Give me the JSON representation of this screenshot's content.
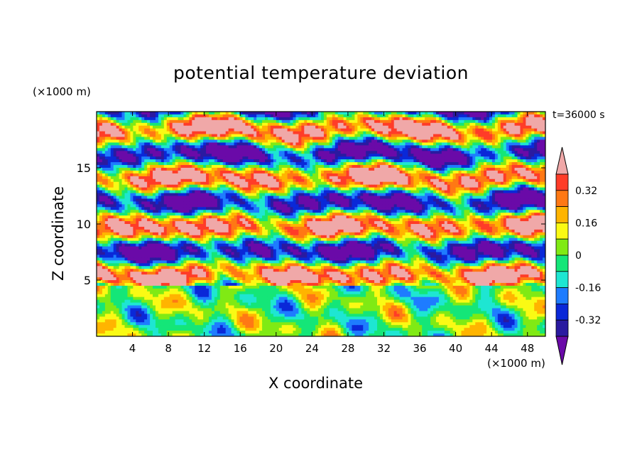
{
  "title": "potential temperature deviation",
  "time_label": "t=36000 s",
  "chart_data": {
    "type": "heatmap",
    "title": "potential temperature deviation",
    "xlabel": "X coordinate",
    "ylabel": "Z coordinate",
    "x_unit": "(×1000 m)",
    "z_unit": "(×1000 m)",
    "xlim": [
      0,
      50
    ],
    "ylim": [
      0,
      20
    ],
    "x_ticks": [
      4,
      8,
      12,
      16,
      20,
      24,
      28,
      32,
      36,
      40,
      44,
      48
    ],
    "y_ticks": [
      5,
      10,
      15
    ],
    "colorbar": {
      "levels": [
        -0.4,
        -0.32,
        -0.24,
        -0.16,
        -0.08,
        0,
        0.08,
        0.16,
        0.24,
        0.32,
        0.4
      ],
      "labels": [
        "0.32",
        "0.16",
        "0",
        "-0.16",
        "-0.32"
      ],
      "label_values": [
        0.32,
        0.16,
        0,
        -0.16,
        -0.32
      ],
      "colors_low_to_high": [
        "#6a0aa8",
        "#2a1aa0",
        "#0a28d8",
        "#1e7cff",
        "#1ee6d2",
        "#14e678",
        "#80ea14",
        "#fafa14",
        "#ffb400",
        "#ff7814",
        "#ff3c28",
        "#f0a8a8"
      ],
      "extend": "both"
    },
    "colormap_colors": {
      "under": "#6a0aa8",
      "over": "#f0a8a8"
    }
  }
}
